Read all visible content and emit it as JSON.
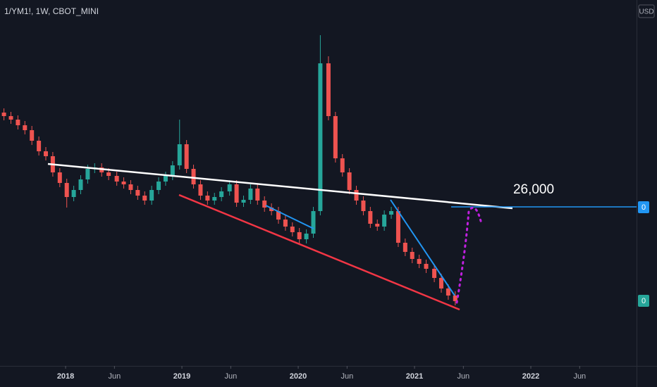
{
  "chart_data": {
    "type": "candlestick",
    "title": "1/YM1!, 1W, CBOT_MINI",
    "currency": "USD",
    "annotation": "26,000",
    "price_labels": [
      "0",
      "0"
    ],
    "x": [
      2017.47,
      2017.53,
      2017.59,
      2017.65,
      2017.71,
      2017.77,
      2017.83,
      2017.89,
      2017.95,
      2018.01,
      2018.07,
      2018.13,
      2018.19,
      2018.25,
      2018.31,
      2018.37,
      2018.44,
      2018.5,
      2018.56,
      2018.62,
      2018.68,
      2018.74,
      2018.8,
      2018.86,
      2018.92,
      2018.98,
      2019.04,
      2019.1,
      2019.16,
      2019.22,
      2019.28,
      2019.34,
      2019.41,
      2019.47,
      2019.53,
      2019.59,
      2019.65,
      2019.71,
      2019.77,
      2019.83,
      2019.89,
      2019.95,
      2020.01,
      2020.07,
      2020.13,
      2020.19,
      2020.26,
      2020.32,
      2020.38,
      2020.44,
      2020.5,
      2020.56,
      2020.62,
      2020.68,
      2020.74,
      2020.8,
      2020.86,
      2020.92,
      2020.98,
      2021.04,
      2021.1,
      2021.17,
      2021.23,
      2021.29,
      2021.35
    ],
    "open": [
      360,
      355,
      350,
      342,
      335,
      320,
      305,
      298,
      275,
      260,
      240,
      250,
      265,
      280,
      282,
      275,
      270,
      262,
      258,
      250,
      242,
      235,
      250,
      262,
      270,
      285,
      315,
      280,
      258,
      242,
      235,
      240,
      248,
      258,
      232,
      236,
      252,
      235,
      225,
      220,
      208,
      198,
      190,
      180,
      188,
      220,
      430,
      355,
      295,
      275,
      250,
      235,
      220,
      202,
      198,
      215,
      220,
      175,
      162,
      152,
      145,
      138,
      125,
      110,
      100
    ],
    "high": [
      366,
      361,
      356,
      348,
      341,
      326,
      311,
      304,
      281,
      266,
      256,
      271,
      286,
      288,
      288,
      281,
      276,
      268,
      264,
      256,
      248,
      256,
      268,
      276,
      291,
      350,
      321,
      286,
      264,
      248,
      246,
      254,
      264,
      264,
      242,
      258,
      258,
      241,
      231,
      226,
      214,
      204,
      196,
      194,
      226,
      470,
      440,
      361,
      301,
      281,
      256,
      241,
      226,
      208,
      221,
      226,
      226,
      181,
      168,
      158,
      151,
      144,
      131,
      116,
      106
    ],
    "low": [
      349,
      344,
      336,
      329,
      314,
      299,
      292,
      269,
      254,
      225,
      234,
      244,
      259,
      274,
      269,
      264,
      256,
      252,
      244,
      236,
      229,
      229,
      244,
      256,
      264,
      279,
      274,
      252,
      236,
      229,
      229,
      234,
      242,
      226,
      226,
      230,
      229,
      219,
      214,
      202,
      192,
      184,
      174,
      174,
      182,
      214,
      349,
      289,
      269,
      244,
      229,
      214,
      196,
      192,
      192,
      209,
      169,
      156,
      146,
      139,
      132,
      119,
      104,
      94,
      86
    ],
    "close": [
      355,
      350,
      342,
      335,
      320,
      305,
      298,
      275,
      260,
      240,
      250,
      265,
      280,
      282,
      275,
      270,
      262,
      258,
      250,
      242,
      235,
      250,
      262,
      270,
      285,
      315,
      280,
      258,
      242,
      235,
      240,
      248,
      258,
      232,
      236,
      252,
      235,
      225,
      220,
      208,
      198,
      190,
      180,
      188,
      220,
      430,
      355,
      295,
      275,
      250,
      235,
      220,
      202,
      198,
      215,
      220,
      175,
      162,
      152,
      145,
      138,
      125,
      110,
      100,
      92
    ],
    "xlim": [
      2017.436,
      2022.909
    ],
    "xticks": [
      2018,
      {
        "value": 2018.42,
        "label": "Jun"
      },
      2019,
      {
        "value": 2019.42,
        "label": "Jun"
      },
      2020,
      {
        "value": 2020.42,
        "label": "Jun"
      },
      2021,
      {
        "value": 2021.42,
        "label": "Jun"
      },
      2022,
      {
        "value": 2022.42,
        "label": "Jun"
      }
    ],
    "ylim": [
      0,
      520
    ],
    "up_color": "#26a69a",
    "down_color": "#ef5350"
  }
}
